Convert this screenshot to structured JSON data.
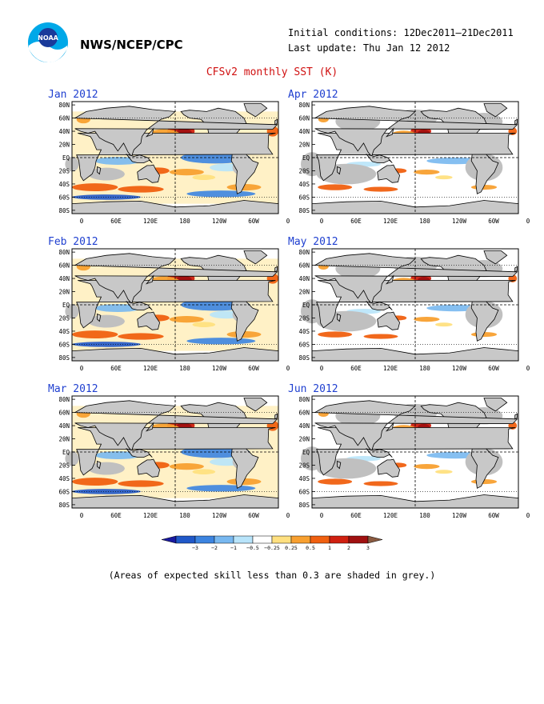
{
  "header": {
    "org": "NWS/NCEP/CPC",
    "initial_conditions": "Initial conditions: 12Dec2011–21Dec2011",
    "last_update": "Last update: Thu Jan 12 2012",
    "logo_text": "NOAA"
  },
  "title": "CFSv2 monthly SST (K)",
  "panels": [
    {
      "month": "Jan 2012"
    },
    {
      "month": "Feb 2012"
    },
    {
      "month": "Mar 2012"
    },
    {
      "month": "Apr 2012"
    },
    {
      "month": "May 2012"
    },
    {
      "month": "Jun 2012"
    }
  ],
  "map_axes": {
    "lat_labels": [
      "80N",
      "60N",
      "40N",
      "20N",
      "EQ",
      "20S",
      "40S",
      "60S",
      "80S"
    ],
    "lon_labels": [
      "0",
      "60E",
      "120E",
      "180",
      "120W",
      "60W",
      "0"
    ]
  },
  "colorbar": {
    "labels": [
      "−3",
      "−2",
      "−1",
      "−0.5",
      "−0.25",
      "0.25",
      "0.5",
      "1",
      "2",
      "3"
    ],
    "colors": [
      "#1a1aa0",
      "#2058c8",
      "#3c84e0",
      "#78b8f0",
      "#b8e4fa",
      "#ffffff",
      "#ffe080",
      "#f8a030",
      "#f06010",
      "#d02010",
      "#a01010",
      "#8a5a40"
    ]
  },
  "palette": {
    "grey_mask": "#c0c0c0",
    "land": "#c8c8c8",
    "title_red": "#d01010",
    "label_blue": "#2040d0"
  },
  "footnote": "(Areas of expected skill less than 0.3 are shaded in grey.)"
}
